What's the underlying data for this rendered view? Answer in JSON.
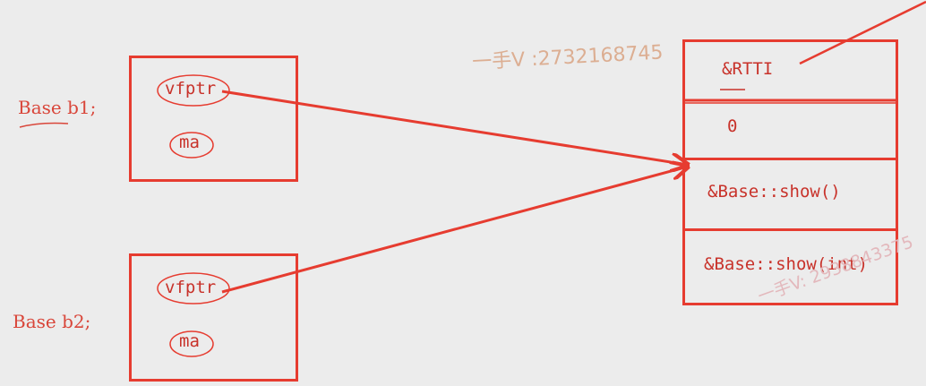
{
  "objects": [
    {
      "label": "Base b1;",
      "fields": [
        "vfptr",
        "ma"
      ]
    },
    {
      "label": "Base b2;",
      "fields": [
        "vfptr",
        "ma"
      ]
    }
  ],
  "vtable": {
    "cells": [
      "&RTTI",
      "0",
      "&Base::show()",
      "&Base::show(int)"
    ]
  },
  "watermarks": {
    "top": "一手V :2732168745",
    "bottom": "一手V: 2938843375"
  },
  "colors": {
    "ink": "#e63c30",
    "text": "#c8322a",
    "watermark": "#d9b199"
  }
}
